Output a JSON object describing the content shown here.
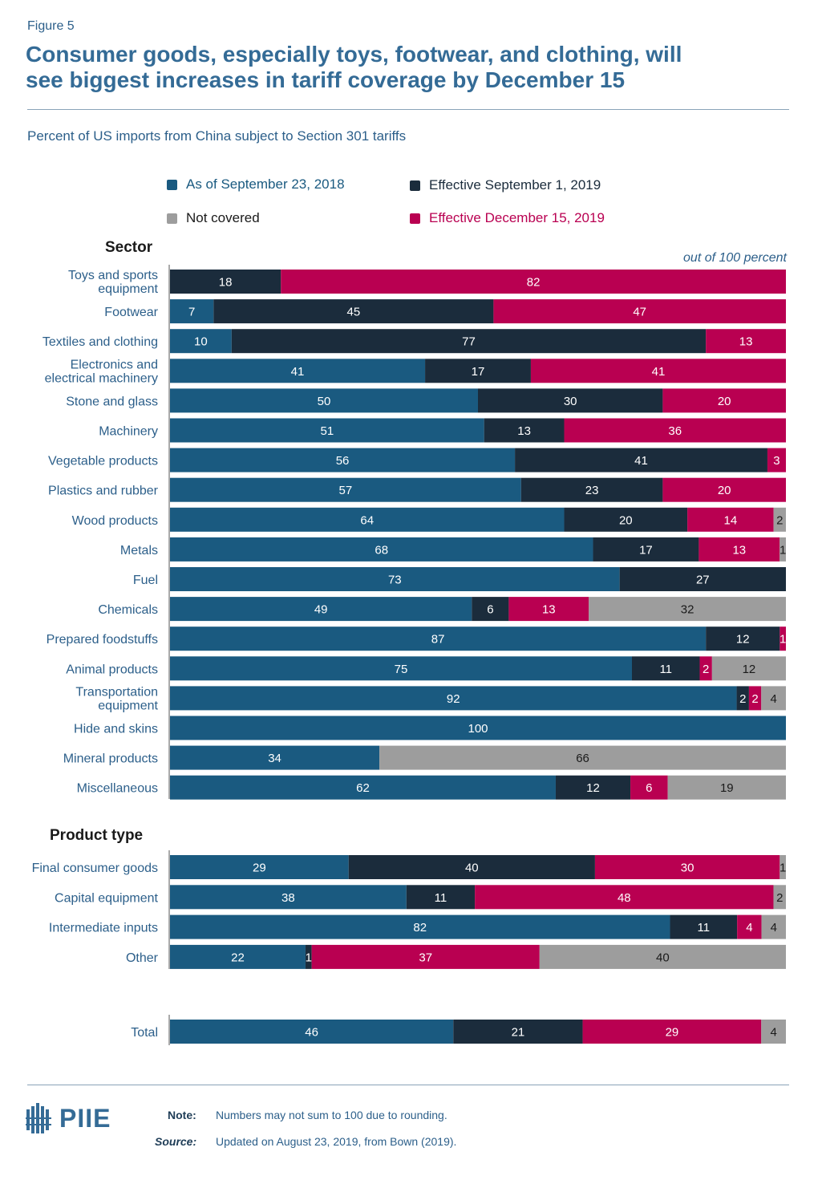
{
  "figure_label": "Figure 5",
  "title_line1": "Consumer goods, especially toys, footwear, and clothing, will",
  "title_line2": "see biggest increases in tariff coverage by December 15",
  "subtitle": "Percent of US imports from China subject to Section 301 tariffs",
  "scale_note": "out of 100 percent",
  "colors": {
    "sep2018": "#1a5a80",
    "sep2019": "#1b2c3c",
    "dec2019": "#b90051",
    "not_covered": "#9d9d9d",
    "title": "#346b96",
    "accent_text": "#2c5f8a"
  },
  "legend": [
    {
      "key": "sep2018",
      "label": "As of September 23, 2018"
    },
    {
      "key": "sep2019",
      "label": "Effective September 1, 2019"
    },
    {
      "key": "not_covered",
      "label": "Not covered"
    },
    {
      "key": "dec2019",
      "label": "Effective December 15, 2019"
    }
  ],
  "chart_data": {
    "type": "bar",
    "orientation": "horizontal-stacked",
    "title": "Consumer goods, especially toys, footwear, and clothing, will see biggest increases in tariff coverage by December 15",
    "xlabel": "Percent of US imports from China subject to Section 301 tariffs",
    "xlim": [
      0,
      100
    ],
    "grid": false,
    "series_order": [
      "sep2018",
      "sep2019",
      "dec2019",
      "not_covered"
    ],
    "series_names": {
      "sep2018": "As of September 23, 2018",
      "sep2019": "Effective September 1, 2019",
      "dec2019": "Effective December 15, 2019",
      "not_covered": "Not covered"
    },
    "groups": [
      {
        "heading": "Sector",
        "rows": [
          {
            "label": [
              "Toys and sports",
              "equipment"
            ],
            "values": [
              0,
              18,
              82,
              0
            ]
          },
          {
            "label": [
              "Footwear"
            ],
            "values": [
              7,
              45,
              47,
              0
            ]
          },
          {
            "label": [
              "Textiles and clothing"
            ],
            "values": [
              10,
              77,
              13,
              0
            ]
          },
          {
            "label": [
              "Electronics and",
              "electrical machinery"
            ],
            "values": [
              41,
              17,
              41,
              0
            ]
          },
          {
            "label": [
              "Stone and glass"
            ],
            "values": [
              50,
              30,
              20,
              0
            ]
          },
          {
            "label": [
              "Machinery"
            ],
            "values": [
              51,
              13,
              36,
              0
            ]
          },
          {
            "label": [
              "Vegetable products"
            ],
            "values": [
              56,
              41,
              3,
              0
            ]
          },
          {
            "label": [
              "Plastics and rubber"
            ],
            "values": [
              57,
              23,
              20,
              0
            ]
          },
          {
            "label": [
              "Wood products"
            ],
            "values": [
              64,
              20,
              14,
              2
            ]
          },
          {
            "label": [
              "Metals"
            ],
            "values": [
              68,
              17,
              13,
              1
            ]
          },
          {
            "label": [
              "Fuel"
            ],
            "values": [
              73,
              27,
              0,
              0
            ]
          },
          {
            "label": [
              "Chemicals"
            ],
            "values": [
              49,
              6,
              13,
              32
            ]
          },
          {
            "label": [
              "Prepared foodstuffs"
            ],
            "values": [
              87,
              12,
              1,
              0
            ]
          },
          {
            "label": [
              "Animal products"
            ],
            "values": [
              75,
              11,
              2,
              12
            ]
          },
          {
            "label": [
              "Transportation",
              "equipment"
            ],
            "values": [
              92,
              2,
              2,
              4
            ]
          },
          {
            "label": [
              "Hide and skins"
            ],
            "values": [
              100,
              0,
              0,
              0
            ]
          },
          {
            "label": [
              "Mineral products"
            ],
            "values": [
              34,
              0,
              0,
              66
            ]
          },
          {
            "label": [
              "Miscellaneous"
            ],
            "values": [
              62,
              12,
              6,
              19
            ]
          }
        ]
      },
      {
        "heading": "Product type",
        "rows": [
          {
            "label": [
              "Final consumer goods"
            ],
            "values": [
              29,
              40,
              30,
              1
            ]
          },
          {
            "label": [
              "Capital equipment"
            ],
            "values": [
              38,
              11,
              48,
              2
            ]
          },
          {
            "label": [
              "Intermediate inputs"
            ],
            "values": [
              82,
              11,
              4,
              4
            ]
          },
          {
            "label": [
              "Other"
            ],
            "values": [
              22,
              1,
              37,
              40
            ]
          }
        ]
      },
      {
        "heading": "",
        "rows": [
          {
            "label": [
              "Total"
            ],
            "values": [
              46,
              21,
              29,
              4
            ]
          }
        ]
      }
    ]
  },
  "footer": {
    "logo_text": "PIIE",
    "note_label": "Note:",
    "note_text": "Numbers may not sum to 100 due to rounding.",
    "source_label": "Source:",
    "source_text": "Updated on August 23, 2019, from Bown (2019)."
  }
}
